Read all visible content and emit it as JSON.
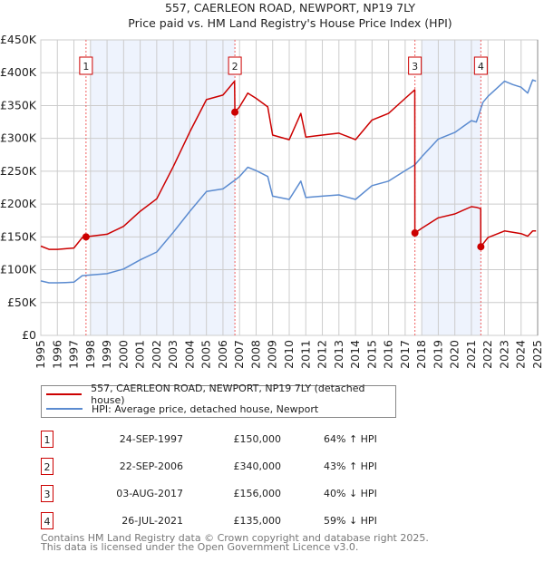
{
  "title": "557, CAERLEON ROAD, NEWPORT, NP19 7LY",
  "subtitle": "Price paid vs. HM Land Registry's House Price Index (HPI)",
  "chart_data": {
    "type": "line",
    "title": "557, CAERLEON ROAD, NEWPORT, NP19 7LY",
    "subtitle": "Price paid vs. HM Land Registry's House Price Index (HPI)",
    "xlim": [
      1995,
      2025
    ],
    "ylim": [
      0,
      450000
    ],
    "y_ticks": [
      0,
      50000,
      100000,
      150000,
      200000,
      250000,
      300000,
      350000,
      400000,
      450000
    ],
    "y_tick_labels": [
      "£0",
      "£50K",
      "£100K",
      "£150K",
      "£200K",
      "£250K",
      "£300K",
      "£350K",
      "£400K",
      "£450K"
    ],
    "x_ticks": [
      1995,
      1996,
      1997,
      1998,
      1999,
      2000,
      2001,
      2002,
      2003,
      2004,
      2005,
      2006,
      2007,
      2008,
      2009,
      2010,
      2011,
      2012,
      2013,
      2014,
      2015,
      2016,
      2017,
      2018,
      2019,
      2020,
      2021,
      2022,
      2023,
      2024,
      2025
    ],
    "x_tick_labels": [
      "1995",
      "1996",
      "1997",
      "1998",
      "1999",
      "2000",
      "2001",
      "2002",
      "2003",
      "2004",
      "2005",
      "2006",
      "2007",
      "2008",
      "2009",
      "2010",
      "2011",
      "2012",
      "2013",
      "2014",
      "2015",
      "2016",
      "2017",
      "2018",
      "2019",
      "2020",
      "2021",
      "2022",
      "2023",
      "2024",
      "2025"
    ],
    "grid": true,
    "shaded_ranges": [
      [
        1998,
        2006.72
      ],
      [
        2018,
        2021.57
      ]
    ],
    "series": [
      {
        "name": "557, CAERLEON ROAD, NEWPORT, NP19 7LY (detached house)",
        "color": "#cc0000",
        "points": [
          [
            1995,
            136000
          ],
          [
            1995.5,
            131000
          ],
          [
            1996,
            131000
          ],
          [
            1996.5,
            132000
          ],
          [
            1997,
            133000
          ],
          [
            1997.5,
            149000
          ],
          [
            1997.73,
            150000
          ],
          [
            1998,
            151000
          ],
          [
            1999,
            154000
          ],
          [
            2000,
            166000
          ],
          [
            2001,
            189000
          ],
          [
            2002,
            208000
          ],
          [
            2003,
            257000
          ],
          [
            2004,
            310000
          ],
          [
            2005,
            359000
          ],
          [
            2006,
            366000
          ],
          [
            2006.7,
            387000
          ],
          [
            2006.72,
            340000
          ],
          [
            2007,
            348000
          ],
          [
            2007.5,
            369000
          ],
          [
            2008,
            361000
          ],
          [
            2008.7,
            348000
          ],
          [
            2009,
            305000
          ],
          [
            2010,
            298000
          ],
          [
            2010.7,
            338000
          ],
          [
            2011,
            302000
          ],
          [
            2012,
            305000
          ],
          [
            2013,
            308000
          ],
          [
            2014,
            298000
          ],
          [
            2015,
            328000
          ],
          [
            2016,
            338000
          ],
          [
            2017,
            361000
          ],
          [
            2017.58,
            374000
          ],
          [
            2017.59,
            156000
          ],
          [
            2018,
            163000
          ],
          [
            2019,
            179000
          ],
          [
            2020,
            185000
          ],
          [
            2021,
            196000
          ],
          [
            2021.3,
            195000
          ],
          [
            2021.56,
            193000
          ],
          [
            2021.57,
            135000
          ],
          [
            2022,
            149000
          ],
          [
            2023,
            159000
          ],
          [
            2023.5,
            157000
          ],
          [
            2024,
            155000
          ],
          [
            2024.4,
            151000
          ],
          [
            2024.7,
            159000
          ],
          [
            2024.9,
            159000
          ]
        ]
      },
      {
        "name": "HPI: Average price, detached house, Newport",
        "color": "#5b8bd0",
        "points": [
          [
            1995,
            83000
          ],
          [
            1995.5,
            80000
          ],
          [
            1996,
            80000
          ],
          [
            1996.5,
            80500
          ],
          [
            1997,
            81000
          ],
          [
            1997.5,
            91000
          ],
          [
            1998,
            92000
          ],
          [
            1999,
            94000
          ],
          [
            2000,
            101000
          ],
          [
            2001,
            115000
          ],
          [
            2002,
            127000
          ],
          [
            2003,
            157000
          ],
          [
            2004,
            189000
          ],
          [
            2005,
            219000
          ],
          [
            2006,
            223000
          ],
          [
            2006.7,
            236000
          ],
          [
            2007,
            242000
          ],
          [
            2007.5,
            256000
          ],
          [
            2008,
            251000
          ],
          [
            2008.7,
            242000
          ],
          [
            2009,
            212000
          ],
          [
            2010,
            207000
          ],
          [
            2010.7,
            235000
          ],
          [
            2011,
            210000
          ],
          [
            2012,
            212000
          ],
          [
            2013,
            214000
          ],
          [
            2014,
            207000
          ],
          [
            2015,
            228000
          ],
          [
            2016,
            235000
          ],
          [
            2017,
            251000
          ],
          [
            2017.6,
            260000
          ],
          [
            2018,
            272000
          ],
          [
            2019,
            299000
          ],
          [
            2020,
            309000
          ],
          [
            2021,
            327000
          ],
          [
            2021.3,
            325000
          ],
          [
            2021.7,
            355000
          ],
          [
            2022,
            364000
          ],
          [
            2023,
            387000
          ],
          [
            2023.5,
            382000
          ],
          [
            2024,
            378000
          ],
          [
            2024.4,
            369000
          ],
          [
            2024.7,
            389000
          ],
          [
            2024.9,
            387000
          ]
        ]
      }
    ],
    "sales": [
      {
        "label": "1",
        "x": 1997.73,
        "price": 150000
      },
      {
        "label": "2",
        "x": 2006.72,
        "price": 340000
      },
      {
        "label": "3",
        "x": 2017.59,
        "price": 156000
      },
      {
        "label": "4",
        "x": 2021.57,
        "price": 135000
      }
    ],
    "legend_placement": "below"
  },
  "legend": [
    {
      "label": "557, CAERLEON ROAD, NEWPORT, NP19 7LY (detached house)",
      "color": "#cc0000"
    },
    {
      "label": "HPI: Average price, detached house, Newport",
      "color": "#5b8bd0"
    }
  ],
  "transactions": [
    {
      "num": "1",
      "date": "24-SEP-1997",
      "price": "£150,000",
      "hpi": "64% ↑ HPI"
    },
    {
      "num": "2",
      "date": "22-SEP-2006",
      "price": "£340,000",
      "hpi": "43% ↑ HPI"
    },
    {
      "num": "3",
      "date": "03-AUG-2017",
      "price": "£156,000",
      "hpi": "40% ↓ HPI"
    },
    {
      "num": "4",
      "date": "26-JUL-2021",
      "price": "£135,000",
      "hpi": "59% ↓ HPI"
    }
  ],
  "footer": {
    "line1": "Contains HM Land Registry data © Crown copyright and database right 2025.",
    "line2": "This data is licensed under the Open Government Licence v3.0."
  }
}
